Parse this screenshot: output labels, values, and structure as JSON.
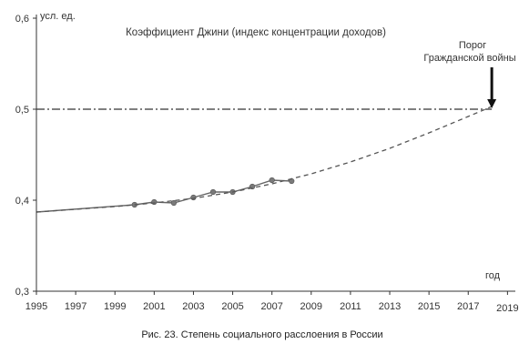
{
  "chart_data": {
    "type": "line",
    "title": "Коэффициент Джини (индекс концентрации доходов)",
    "caption": "Рис. 23. Степень социального расслоения в России",
    "ylabel": "усл. ед.",
    "xlabel": "год",
    "ylim": [
      0.3,
      0.6
    ],
    "xlim": [
      1995,
      2019.4
    ],
    "y_ticks": [
      {
        "value": 0.3,
        "label": "0,3"
      },
      {
        "value": 0.4,
        "label": "0,4"
      },
      {
        "value": 0.5,
        "label": "0,5"
      },
      {
        "value": 0.6,
        "label": "0,6"
      }
    ],
    "x_ticks": [
      {
        "value": 1995,
        "label": "1995"
      },
      {
        "value": 1997,
        "label": "1997"
      },
      {
        "value": 1999,
        "label": "1999"
      },
      {
        "value": 2001,
        "label": "2001"
      },
      {
        "value": 2003,
        "label": "2003"
      },
      {
        "value": 2005,
        "label": "2005"
      },
      {
        "value": 2007,
        "label": "2007"
      },
      {
        "value": 2009,
        "label": "2009"
      },
      {
        "value": 2011,
        "label": "2011"
      },
      {
        "value": 2013,
        "label": "2013"
      },
      {
        "value": 2015,
        "label": "2015"
      },
      {
        "value": 2017,
        "label": "2017"
      },
      {
        "value": 2019,
        "label": "2019"
      }
    ],
    "series": [
      {
        "x": [
          1995,
          2000,
          2001,
          2002,
          2003,
          2004,
          2005,
          2006,
          2007,
          2008
        ],
        "y": [
          0.387,
          0.395,
          0.398,
          0.397,
          0.403,
          0.409,
          0.409,
          0.415,
          0.422,
          0.421
        ],
        "style": "solid-with-markers",
        "color": "#666666"
      },
      {
        "x": [
          1995,
          1997,
          1999,
          2001,
          2003,
          2005,
          2007,
          2009,
          2011,
          2013,
          2015,
          2017,
          2018.2
        ],
        "y": [
          0.387,
          0.39,
          0.393,
          0.397,
          0.402,
          0.409,
          0.418,
          0.429,
          0.442,
          0.457,
          0.474,
          0.492,
          0.503
        ],
        "style": "dashed-trend",
        "color": "#555555"
      }
    ],
    "reference_line": {
      "y": 0.5,
      "style": "dash-dot",
      "color": "#333333"
    },
    "annotation": {
      "lines": [
        "Порог",
        "Гражданской войны"
      ],
      "target": {
        "x": 2018.2,
        "y": 0.5
      }
    }
  }
}
